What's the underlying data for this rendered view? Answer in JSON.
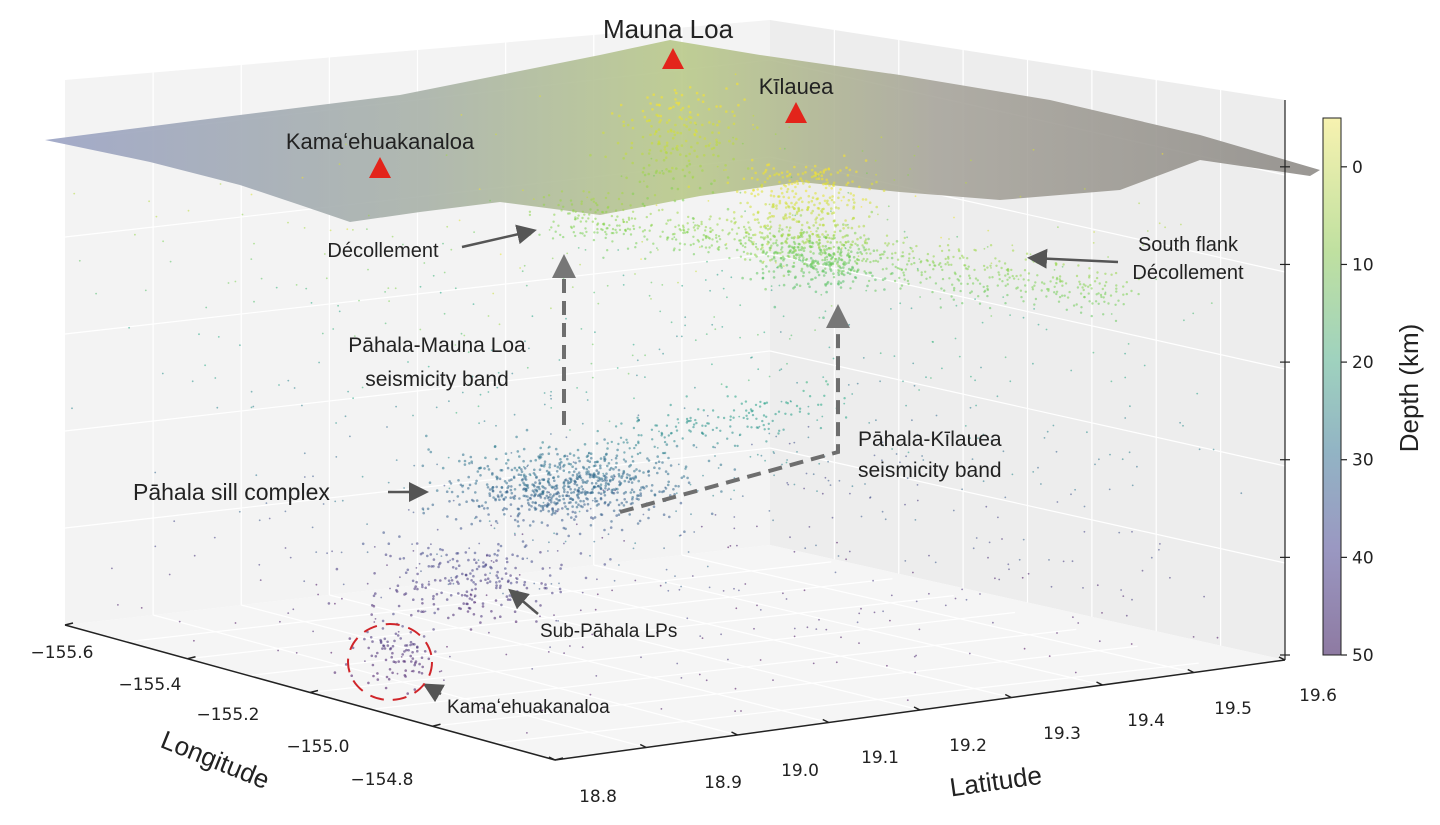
{
  "chart_data": {
    "type": "scatter",
    "projection": "3d",
    "x_axis": {
      "label": "Longitude",
      "range": [
        -155.6,
        -154.8
      ],
      "ticks": [
        "−155.6",
        "−155.4",
        "−155.2",
        "−155.0",
        "−154.8"
      ]
    },
    "y_axis": {
      "label": "Latitude",
      "range": [
        18.8,
        19.6
      ],
      "ticks": [
        "18.8",
        "18.9",
        "19.0",
        "19.1",
        "19.2",
        "19.3",
        "19.4",
        "19.5",
        "19.6"
      ]
    },
    "z_axis": {
      "label": "Depth (km)",
      "range": [
        0,
        50
      ],
      "inverted": true
    },
    "colorbar": {
      "label": "Depth (km)",
      "ticks": [
        "0",
        "10",
        "20",
        "30",
        "40",
        "50"
      ],
      "range": [
        -5,
        50
      ],
      "colormap": "viridis (reversed, semi-transparent)"
    },
    "grid": true,
    "surface": "topography",
    "volcanoes": [
      {
        "name": "Mauna Loa",
        "color": "#e3241b"
      },
      {
        "name": "Kīlauea",
        "color": "#e3241b"
      },
      {
        "name": "Kamaʻehuakanaloa",
        "color": "#e3241b"
      }
    ],
    "clusters": [
      {
        "lon": -155.23,
        "lat": 19.1,
        "depth": 33,
        "n": 700,
        "spread": [
          0.05,
          0.05,
          1.5
        ]
      },
      {
        "lon": -155.08,
        "lat": 19.26,
        "depth": 4,
        "n": 350,
        "spread": [
          0.03,
          0.03,
          3
        ]
      },
      {
        "lon": -155.42,
        "lat": 19.35,
        "depth": 4,
        "n": 200,
        "spread": [
          0.03,
          0.03,
          3
        ]
      },
      {
        "lon": -155.18,
        "lat": 19.34,
        "depth": 12,
        "n": 250,
        "spread": [
          0.03,
          0.03,
          1.5
        ]
      },
      {
        "lon": -155.25,
        "lat": 19.01,
        "depth": 42,
        "n": 220,
        "spread": [
          0.05,
          0.04,
          2
        ]
      },
      {
        "lon": -155.11,
        "lat": 18.83,
        "depth": 45,
        "n": 90,
        "spread": [
          0.02,
          0.02,
          1.5
        ]
      }
    ],
    "bands": [
      {
        "from": {
          "lon": -155.38,
          "lat": 19.19,
          "depth": 9
        },
        "to": {
          "lon": -154.8,
          "lat": 19.42,
          "depth": 10
        },
        "n": 700
      },
      {
        "from": {
          "lon": -155.19,
          "lat": 19.13,
          "depth": 28
        },
        "to": {
          "lon": -154.92,
          "lat": 19.18,
          "depth": 20
        },
        "n": 150
      }
    ],
    "background_n": 900
  },
  "labels": {
    "mauna_loa": "Mauna Loa",
    "kilauea": "Kīlauea",
    "kama_top": "Kamaʻehuakanaloa",
    "decollement": "Décollement",
    "south_flank_1": "South flank",
    "south_flank_2": "Décollement",
    "pml_1": "Pāhala-Mauna Loa",
    "pml_2": "seismicity band",
    "sill": "Pāhala sill complex",
    "pk_1": "Pāhala-Kīlauea",
    "pk_2": "seismicity band",
    "sub_lps": "Sub-Pāhala LPs",
    "kama_bottom": "Kamaʻehuakanaloa"
  }
}
